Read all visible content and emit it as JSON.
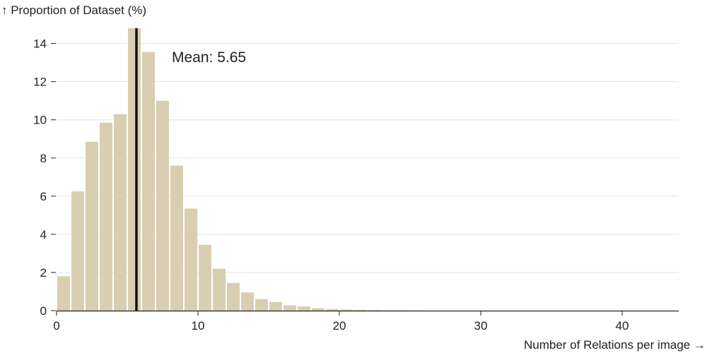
{
  "chart_data": {
    "type": "bar",
    "ylabel": "↑ Proportion of Dataset (%)",
    "xlabel": "Number of Relations per image →",
    "annotation": "Mean: 5.65",
    "mean": 5.65,
    "xlim": [
      0,
      44
    ],
    "ylim": [
      0,
      14.8
    ],
    "bin_width": 1,
    "x_ticks": [
      0,
      10,
      20,
      30,
      40
    ],
    "y_ticks": [
      0,
      2,
      4,
      6,
      8,
      10,
      12,
      14
    ],
    "grid": true,
    "bar_color": "#d9ceb2",
    "mean_line_color": "#111111",
    "bins": [
      {
        "x0": 0,
        "value": 1.8
      },
      {
        "x0": 1,
        "value": 6.25
      },
      {
        "x0": 2,
        "value": 8.85
      },
      {
        "x0": 3,
        "value": 9.85
      },
      {
        "x0": 4,
        "value": 10.3
      },
      {
        "x0": 5,
        "value": 14.8
      },
      {
        "x0": 6,
        "value": 13.55
      },
      {
        "x0": 7,
        "value": 11.0
      },
      {
        "x0": 8,
        "value": 7.6
      },
      {
        "x0": 9,
        "value": 5.35
      },
      {
        "x0": 10,
        "value": 3.45
      },
      {
        "x0": 11,
        "value": 2.2
      },
      {
        "x0": 12,
        "value": 1.45
      },
      {
        "x0": 13,
        "value": 0.95
      },
      {
        "x0": 14,
        "value": 0.6
      },
      {
        "x0": 15,
        "value": 0.45
      },
      {
        "x0": 16,
        "value": 0.28
      },
      {
        "x0": 17,
        "value": 0.22
      },
      {
        "x0": 18,
        "value": 0.13
      },
      {
        "x0": 19,
        "value": 0.09
      },
      {
        "x0": 20,
        "value": 0.06
      },
      {
        "x0": 21,
        "value": 0.04
      },
      {
        "x0": 22,
        "value": 0.03
      },
      {
        "x0": 23,
        "value": 0.02
      },
      {
        "x0": 24,
        "value": 0.015
      },
      {
        "x0": 25,
        "value": 0.01
      }
    ]
  }
}
